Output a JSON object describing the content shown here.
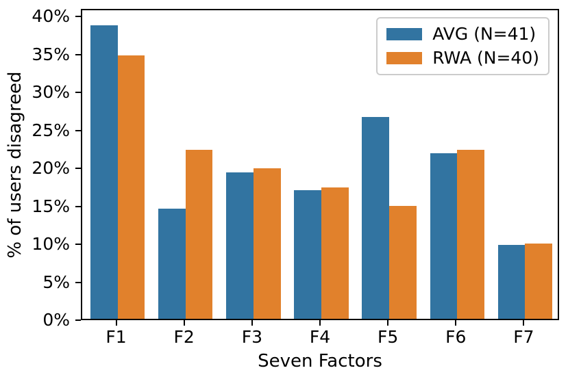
{
  "chart_data": {
    "type": "bar",
    "title": "",
    "categories": [
      "F1",
      "F2",
      "F3",
      "F4",
      "F5",
      "F6",
      "F7"
    ],
    "series": [
      {
        "name": "AVG (N=41)",
        "color": "#3274a1",
        "values": [
          39.0,
          14.6,
          19.5,
          17.1,
          26.8,
          22.0,
          9.8
        ]
      },
      {
        "name": "RWA (N=40)",
        "color": "#e1812c",
        "values": [
          35.0,
          22.5,
          20.0,
          17.5,
          15.0,
          22.5,
          10.0
        ]
      }
    ],
    "xlabel": "Seven Factors",
    "ylabel": "% of users disagreed",
    "ylim": [
      0,
      41
    ],
    "yticks": [
      0,
      5,
      10,
      15,
      20,
      25,
      30,
      35,
      40
    ],
    "ytick_suffix": "%",
    "legend_position": "upper right",
    "grid": false,
    "axis_color": "#000000",
    "legend_border_color": "#cccccc",
    "background_color": "#ffffff"
  }
}
